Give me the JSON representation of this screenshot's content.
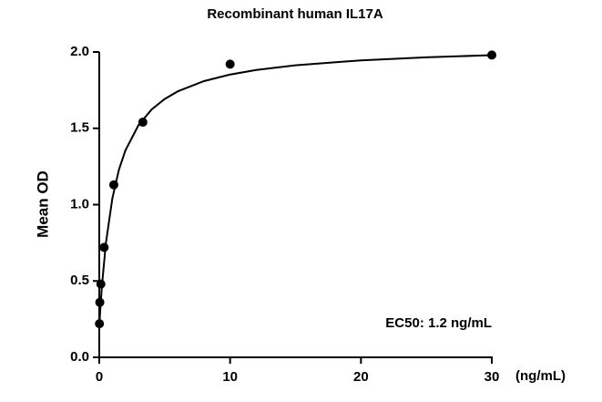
{
  "chart_data": {
    "type": "scatter",
    "title": "Recombinant human IL17A",
    "y_label": "Mean OD",
    "x_label": "(ng/mL)",
    "annotation": "EC50: 1.2 ng/mL",
    "x": [
      0.014,
      0.041,
      0.123,
      0.37,
      1.11,
      3.33,
      10,
      30
    ],
    "values": [
      0.22,
      0.36,
      0.48,
      0.72,
      1.13,
      1.54,
      1.92,
      1.98
    ],
    "color": "#000000",
    "curve": {
      "x": [
        0,
        0.1,
        0.2,
        0.5,
        1,
        1.5,
        2,
        3,
        4,
        5,
        6,
        8,
        10,
        12,
        15,
        20,
        25,
        30
      ],
      "values": [
        0.2,
        0.342,
        0.464,
        0.744,
        1.041,
        1.228,
        1.356,
        1.521,
        1.623,
        1.692,
        1.742,
        1.809,
        1.852,
        1.882,
        1.913,
        1.945,
        1.965,
        1.979
      ]
    },
    "xlim": [
      0,
      30
    ],
    "ylim": [
      0,
      2
    ],
    "xticks": [
      0,
      10,
      20,
      30
    ],
    "yticks": [
      {
        "value": 0,
        "label": "0.0"
      },
      {
        "value": 0.5,
        "label": "0.5"
      },
      {
        "value": 1,
        "label": "1.0"
      },
      {
        "value": 1.5,
        "label": "1.5"
      },
      {
        "value": 2,
        "label": "2.0"
      }
    ],
    "grid": false
  }
}
